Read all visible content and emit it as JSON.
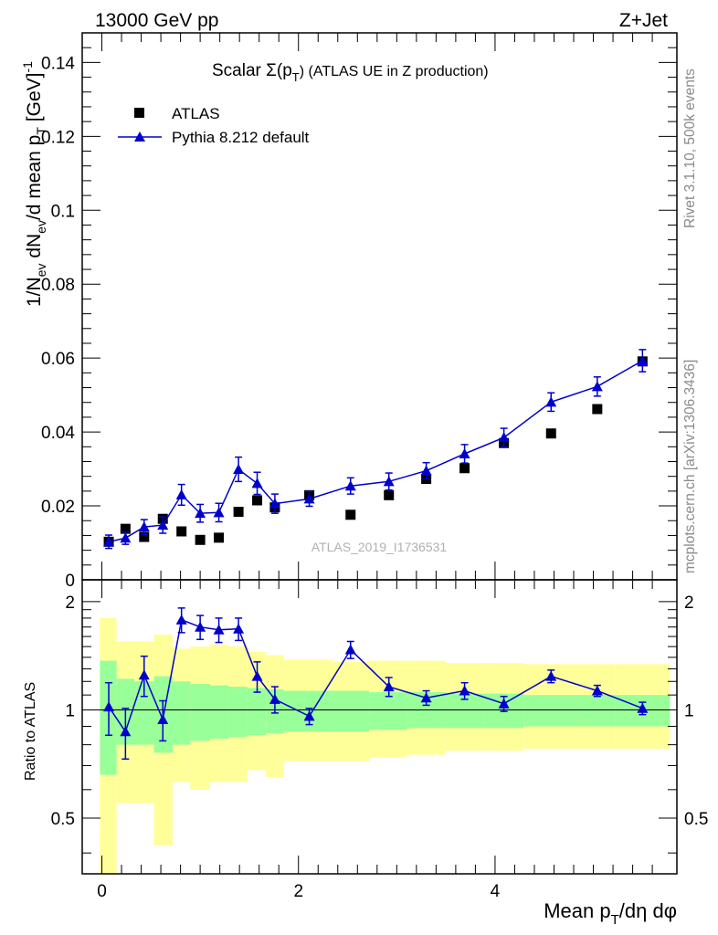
{
  "header": {
    "energy": "13000 GeV pp",
    "process": "Z+Jet"
  },
  "side": {
    "rivet": "Rivet 3.1.10,  500k events",
    "mcplots": "mcplots.cern.ch [arXiv:1306.3436]"
  },
  "chart_data": [
    {
      "type": "scatter",
      "title": "Scalar Σ(pT) (ATLAS UE in Z production)",
      "title_parts": {
        "pre": "Scalar ",
        "sigma": "Σ(p",
        "sub": "T",
        "post": ")  (ATLAS UE in Z production)"
      },
      "ylabel": "1/Nev dNev/d mean pT [GeV]^-1",
      "ylabel_parts": {
        "a": "1/N",
        "sub_ev1": "ev",
        "b": " dN",
        "sub_ev2": "ev",
        "c": "/d mean p",
        "sub_t": "T",
        "d": " [GeV]",
        "sup": "-1"
      },
      "xlim": [
        -0.2,
        5.85
      ],
      "ylim": [
        0,
        0.148
      ],
      "yticks": [
        0,
        0.02,
        0.04,
        0.06,
        0.08,
        0.1,
        0.12,
        0.14
      ],
      "ytick_labels": [
        "0",
        "0.02",
        "0.04",
        "0.06",
        "0.08",
        "0.1",
        "0.12",
        "0.14"
      ],
      "watermark": "ATLAS_2019_I1736531",
      "legend": {
        "position": "top-left",
        "data_label": "ATLAS",
        "mc_label": "Pythia 8.212 default"
      },
      "series": [
        {
          "name": "ATLAS",
          "marker": "square",
          "x": [
            0.07,
            0.24,
            0.43,
            0.62,
            0.81,
            1.0,
            1.19,
            1.39,
            1.58,
            1.76,
            2.11,
            2.53,
            2.92,
            3.3,
            3.69,
            4.09,
            4.57,
            5.04,
            5.5
          ],
          "y": [
            0.0103,
            0.0138,
            0.0116,
            0.0165,
            0.0131,
            0.0108,
            0.0114,
            0.0184,
            0.0215,
            0.0196,
            0.0229,
            0.0176,
            0.0229,
            0.0273,
            0.0302,
            0.037,
            0.0396,
            0.0462,
            0.0591
          ]
        },
        {
          "name": "Pythia 8.212 default",
          "marker": "triangle",
          "color": "#0000cc",
          "x": [
            0.07,
            0.24,
            0.43,
            0.62,
            0.81,
            1.0,
            1.19,
            1.39,
            1.58,
            1.76,
            2.11,
            2.53,
            2.92,
            3.3,
            3.69,
            4.09,
            4.57,
            5.04,
            5.5
          ],
          "y": [
            0.0103,
            0.0113,
            0.0143,
            0.0148,
            0.023,
            0.018,
            0.0182,
            0.0299,
            0.0261,
            0.0206,
            0.0219,
            0.0254,
            0.0266,
            0.0295,
            0.0341,
            0.0385,
            0.0481,
            0.0523,
            0.0593
          ],
          "err": [
            0.0018,
            0.0017,
            0.002,
            0.0022,
            0.0028,
            0.0024,
            0.0025,
            0.0033,
            0.003,
            0.0026,
            0.002,
            0.0022,
            0.0023,
            0.0022,
            0.0025,
            0.0025,
            0.0025,
            0.0026,
            0.003
          ]
        }
      ]
    },
    {
      "type": "line",
      "ylabel": "Ratio to ATLAS",
      "xlabel": "Mean pT/dη dφ",
      "xlabel_parts": {
        "a": "Mean p",
        "sub": "T",
        "b": "/dη dφ"
      },
      "xlim": [
        -0.2,
        5.85
      ],
      "ylim": [
        0.35,
        2.3
      ],
      "xticks": [
        0,
        2,
        4
      ],
      "xtick_labels": [
        "0",
        "2",
        "4"
      ],
      "yticks": [
        0.5,
        1,
        2
      ],
      "ytick_labels": [
        "0.5",
        "1",
        "2"
      ],
      "bands": {
        "edges": [
          -0.02,
          0.15,
          0.33,
          0.53,
          0.72,
          0.9,
          1.1,
          1.29,
          1.48,
          1.67,
          1.85,
          2.35,
          2.72,
          3.11,
          3.5,
          3.89,
          4.29,
          4.85,
          5.22,
          5.78
        ],
        "green_lo": [
          0.66,
          0.8,
          0.8,
          0.76,
          0.8,
          0.82,
          0.83,
          0.84,
          0.85,
          0.86,
          0.87,
          0.87,
          0.88,
          0.89,
          0.89,
          0.89,
          0.9,
          0.9,
          0.9
        ],
        "green_hi": [
          1.37,
          1.22,
          1.2,
          1.24,
          1.2,
          1.18,
          1.17,
          1.16,
          1.15,
          1.14,
          1.13,
          1.13,
          1.12,
          1.12,
          1.11,
          1.11,
          1.1,
          1.1,
          1.1
        ],
        "yellow_lo": [
          0.35,
          0.55,
          0.55,
          0.42,
          0.63,
          0.6,
          0.63,
          0.63,
          0.68,
          0.65,
          0.72,
          0.72,
          0.74,
          0.75,
          0.77,
          0.77,
          0.78,
          0.78,
          0.78
        ],
        "yellow_hi": [
          1.8,
          1.55,
          1.55,
          1.62,
          1.48,
          1.5,
          1.52,
          1.5,
          1.45,
          1.42,
          1.38,
          1.36,
          1.37,
          1.37,
          1.35,
          1.35,
          1.34,
          1.34,
          1.34
        ]
      },
      "ratio": {
        "x": [
          0.07,
          0.24,
          0.43,
          0.62,
          0.81,
          1.0,
          1.19,
          1.39,
          1.58,
          1.76,
          2.11,
          2.53,
          2.92,
          3.3,
          3.69,
          4.09,
          4.57,
          5.04,
          5.5
        ],
        "y": [
          1.02,
          0.87,
          1.25,
          0.94,
          1.78,
          1.7,
          1.67,
          1.68,
          1.24,
          1.07,
          0.96,
          1.47,
          1.16,
          1.08,
          1.13,
          1.04,
          1.24,
          1.13,
          1.01
        ],
        "err": [
          0.17,
          0.14,
          0.16,
          0.12,
          0.14,
          0.13,
          0.13,
          0.12,
          0.12,
          0.09,
          0.05,
          0.08,
          0.07,
          0.05,
          0.06,
          0.05,
          0.05,
          0.04,
          0.04
        ]
      }
    }
  ]
}
